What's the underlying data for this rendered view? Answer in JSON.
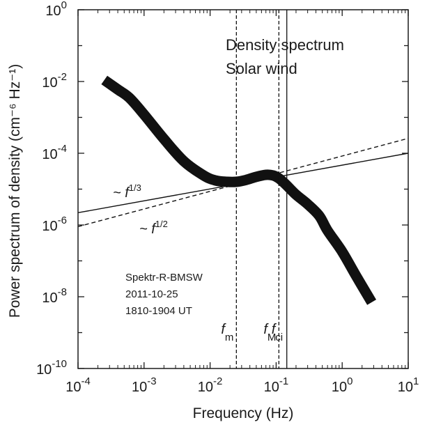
{
  "chart_data": {
    "type": "line",
    "title": "",
    "xlabel": "Frequency  (Hz)",
    "ylabel": "Power spectrum of density (cm⁻⁶ Hz⁻¹)",
    "xscale": "log",
    "yscale": "log",
    "xlim": [
      0.0001,
      10
    ],
    "ylim": [
      1e-10,
      1
    ],
    "grid": false,
    "x_ticks": [
      {
        "base": "10",
        "exp": "-4"
      },
      {
        "base": "10",
        "exp": "-3"
      },
      {
        "base": "10",
        "exp": "-2"
      },
      {
        "base": "10",
        "exp": "-1"
      },
      {
        "base": "10",
        "exp": "0"
      },
      {
        "base": "10",
        "exp": "1"
      }
    ],
    "y_ticks": [
      {
        "base": "10",
        "exp": "-10"
      },
      {
        "base": "10",
        "exp": "-8"
      },
      {
        "base": "10",
        "exp": "-6"
      },
      {
        "base": "10",
        "exp": "-4"
      },
      {
        "base": "10",
        "exp": "-2"
      },
      {
        "base": "10",
        "exp": "0"
      }
    ],
    "series": [
      {
        "style": "thick-solid",
        "x": [
          0.00025,
          0.0004,
          0.0006,
          0.001,
          0.002,
          0.004,
          0.008,
          0.012,
          0.018,
          0.025,
          0.035,
          0.05,
          0.07,
          0.09,
          0.11,
          0.14,
          0.2,
          0.3,
          0.45,
          0.6,
          1.0,
          1.6,
          2.8
        ],
        "y": [
          0.011,
          0.006,
          0.0035,
          0.0012,
          0.00025,
          6e-05,
          2.4e-05,
          1.75e-05,
          1.6e-05,
          1.6e-05,
          1.8e-05,
          2.2e-05,
          2.5e-05,
          2.4e-05,
          2e-05,
          1.35e-05,
          7e-06,
          3.8e-06,
          1.8e-06,
          7e-07,
          1.8e-07,
          4e-08,
          7e-09
        ]
      },
      {
        "style": "thin-solid",
        "x": [
          0.0001,
          10
        ],
        "y": [
          2.2e-06,
          0.0001
        ]
      },
      {
        "style": "thin-dashed",
        "x": [
          0.0001,
          10
        ],
        "y": [
          9e-07,
          0.00026
        ]
      }
    ],
    "vertical_lines": [
      {
        "x": 0.025,
        "style": "dashed",
        "label_main": "f",
        "label_sub": "m"
      },
      {
        "x": 0.11,
        "style": "dashed",
        "label_main": "f",
        "label_sub": "M"
      },
      {
        "x": 0.145,
        "style": "solid",
        "label_main": "f",
        "label_sub": "ci"
      }
    ],
    "annotations": {
      "title_lines": [
        "Density spectrum",
        "Solar wind"
      ],
      "info_lines": [
        "Spektr-R-BMSW",
        "2011-10-25",
        "1810-1904 UT"
      ],
      "slope_solid": {
        "prefix": "~ f",
        "exp": "1/3"
      },
      "slope_dashed": {
        "prefix": "~ f",
        "exp": "1/2"
      }
    }
  }
}
